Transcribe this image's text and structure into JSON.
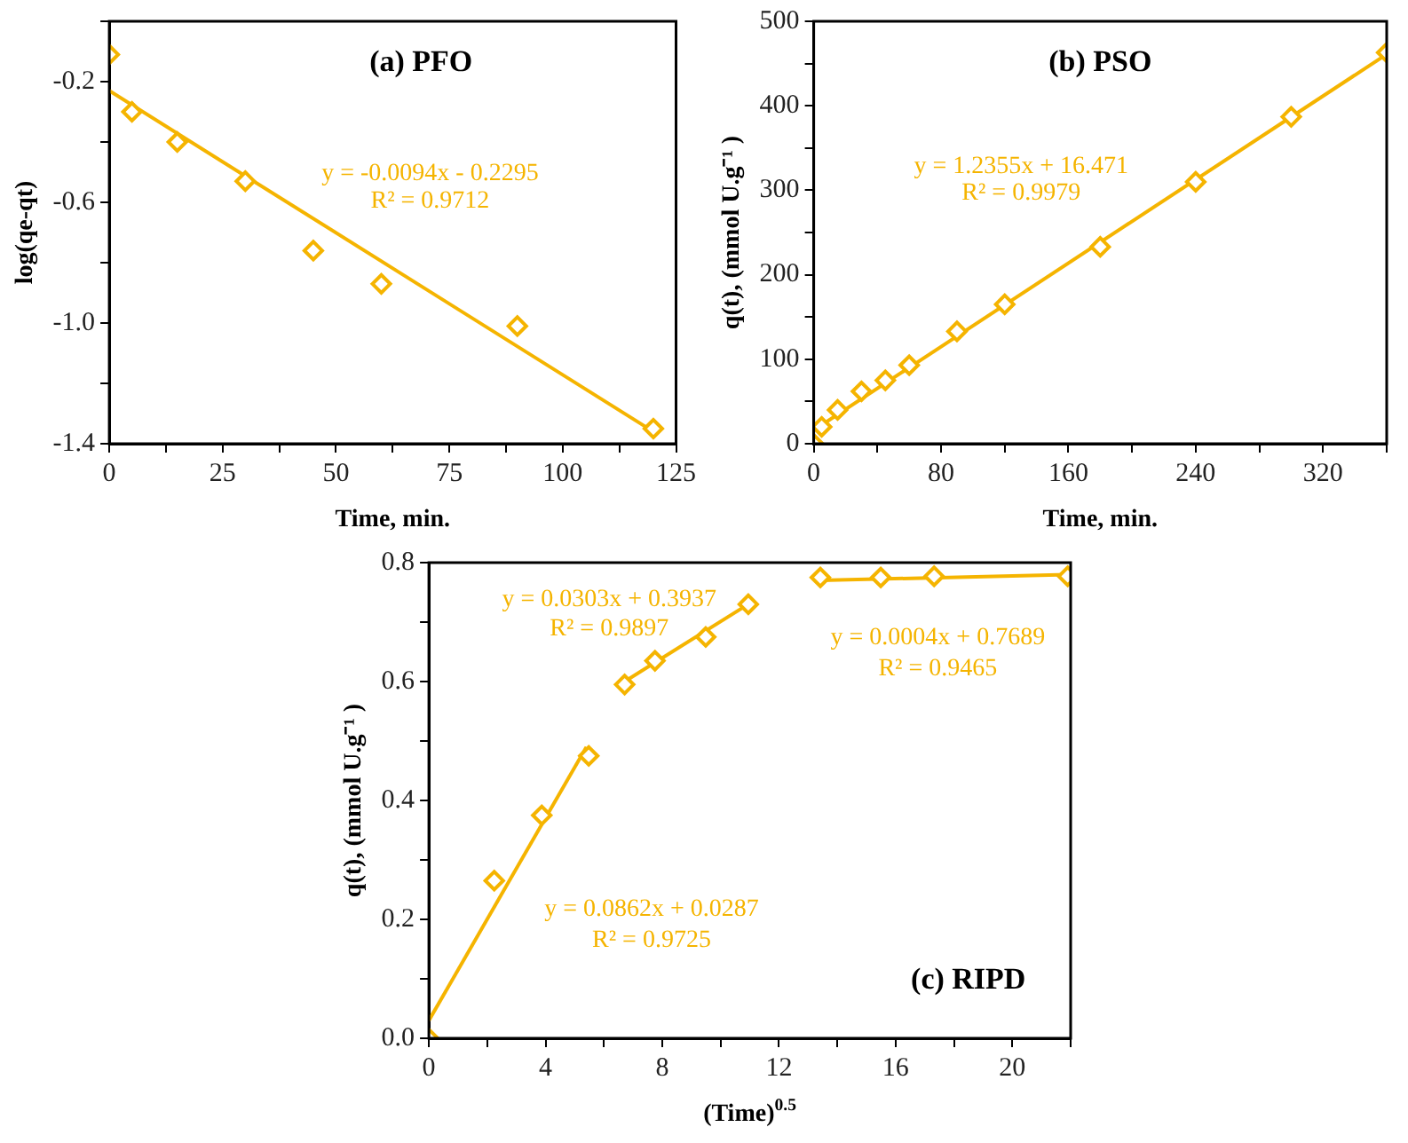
{
  "chart_data": [
    {
      "type": "scatter",
      "title": "(a) PFO",
      "xlabel": "Time, min.",
      "ylabel": "log(qe-qt)",
      "xlim": [
        0,
        125
      ],
      "ylim": [
        -1.4,
        0
      ],
      "grid": false,
      "legend": false,
      "xticks": [
        0,
        {
          "value": 12.5,
          "label": null
        },
        25,
        {
          "value": 37.5,
          "label": null
        },
        50,
        {
          "value": 62.5,
          "label": null
        },
        75,
        {
          "value": 87.5,
          "label": null
        },
        100,
        {
          "value": 112.5,
          "label": null
        },
        125
      ],
      "yticks": [
        -1.4,
        {
          "value": -1.2,
          "label": null
        },
        {
          "value": -1.0,
          "label": "-1.0"
        },
        {
          "value": -0.8,
          "label": null
        },
        -0.6,
        {
          "value": -0.4,
          "label": null
        },
        -0.2,
        {
          "value": 0,
          "label": null
        }
      ],
      "series": [
        {
          "type": "scatter",
          "marker": "diamond",
          "color": "#f5b400",
          "x": [
            0,
            5,
            15,
            30,
            45,
            60,
            90,
            120
          ],
          "values": [
            -0.11,
            -0.3,
            -0.4,
            -0.53,
            -0.76,
            -0.87,
            -1.01,
            -1.35
          ]
        },
        {
          "type": "line",
          "marker": "none",
          "color": "#f5b400",
          "x": [
            0,
            120
          ],
          "values": [
            -0.23,
            -1.36
          ]
        }
      ],
      "annotations": [
        "y = -0.0094x - 0.2295",
        "R² = 0.9712"
      ]
    },
    {
      "type": "scatter",
      "title": "(b) PSO",
      "xlabel": "Time, min.",
      "ylabel": "q(t), (mmol U.g⁻¹ )",
      "xlim": [
        0,
        360
      ],
      "ylim": [
        0,
        500
      ],
      "grid": false,
      "legend": false,
      "xticks": [
        0,
        {
          "value": 40,
          "label": null
        },
        80,
        {
          "value": 120,
          "label": null
        },
        160,
        {
          "value": 200,
          "label": null
        },
        240,
        {
          "value": 280,
          "label": null
        },
        320,
        {
          "value": 360,
          "label": null
        }
      ],
      "yticks": [
        0,
        {
          "value": 50,
          "label": null
        },
        100,
        {
          "value": 150,
          "label": null
        },
        200,
        {
          "value": 250,
          "label": null
        },
        300,
        {
          "value": 350,
          "label": null
        },
        400,
        {
          "value": 450,
          "label": null
        },
        500
      ],
      "series": [
        {
          "type": "scatter",
          "marker": "diamond",
          "color": "#f5b400",
          "x": [
            0,
            5,
            15,
            30,
            45,
            60,
            90,
            120,
            180,
            240,
            300,
            360
          ],
          "values": [
            0,
            20,
            40,
            62,
            75,
            93,
            133,
            165,
            233,
            310,
            387,
            463
          ]
        },
        {
          "type": "line",
          "marker": "none",
          "color": "#f5b400",
          "x": [
            0,
            360
          ],
          "values": [
            16,
            461
          ]
        }
      ],
      "annotations": [
        "y = 1.2355x + 16.471",
        "R² = 0.9979"
      ]
    },
    {
      "type": "scatter",
      "title": "(c) RIPD",
      "xlabel": "(Time)$^{0.5}$",
      "ylabel": "q(t), (mmol U.g⁻¹ )",
      "xlim": [
        0,
        22
      ],
      "ylim": [
        0,
        0.8
      ],
      "grid": false,
      "legend": false,
      "xticks": [
        0,
        {
          "value": 2,
          "label": null
        },
        4,
        {
          "value": 6,
          "label": null
        },
        8,
        {
          "value": 10,
          "label": null
        },
        12,
        {
          "value": 14,
          "label": null
        },
        16,
        {
          "value": 18,
          "label": null
        },
        20,
        {
          "value": 22,
          "label": null
        }
      ],
      "yticks": [
        {
          "value": 0,
          "label": "0.0"
        },
        {
          "value": 0.1,
          "label": null
        },
        0.2,
        {
          "value": 0.3,
          "label": null
        },
        0.4,
        {
          "value": 0.5,
          "label": null
        },
        0.6,
        {
          "value": 0.7,
          "label": null
        },
        0.8
      ],
      "series": [
        {
          "type": "scatter",
          "marker": "diamond",
          "color": "#f5b400",
          "x": [
            0,
            2.24,
            3.87,
            5.48,
            6.71,
            7.75,
            9.49,
            10.95,
            13.42,
            15.49,
            17.32,
            21.9
          ],
          "values": [
            0,
            0.265,
            0.375,
            0.475,
            0.595,
            0.635,
            0.675,
            0.73,
            0.775,
            0.775,
            0.777,
            0.777
          ]
        },
        {
          "type": "line",
          "marker": "none",
          "color": "#f5b400",
          "x": [
            0,
            5.4
          ],
          "values": [
            0.03,
            0.49
          ]
        },
        {
          "type": "line",
          "marker": "none",
          "color": "#f5b400",
          "x": [
            6.71,
            10.95
          ],
          "values": [
            0.6,
            0.73
          ]
        },
        {
          "type": "line",
          "marker": "none",
          "color": "#f5b400",
          "x": [
            13.42,
            21.9
          ],
          "values": [
            0.77,
            0.78
          ]
        }
      ],
      "annotations": [
        "y = 0.0303x + 0.3937",
        "R² = 0.9897",
        "y = 0.0862x + 0.0287",
        "R² = 0.9725",
        "y = 0.0004x + 0.7689",
        "R² = 0.9465"
      ]
    }
  ]
}
